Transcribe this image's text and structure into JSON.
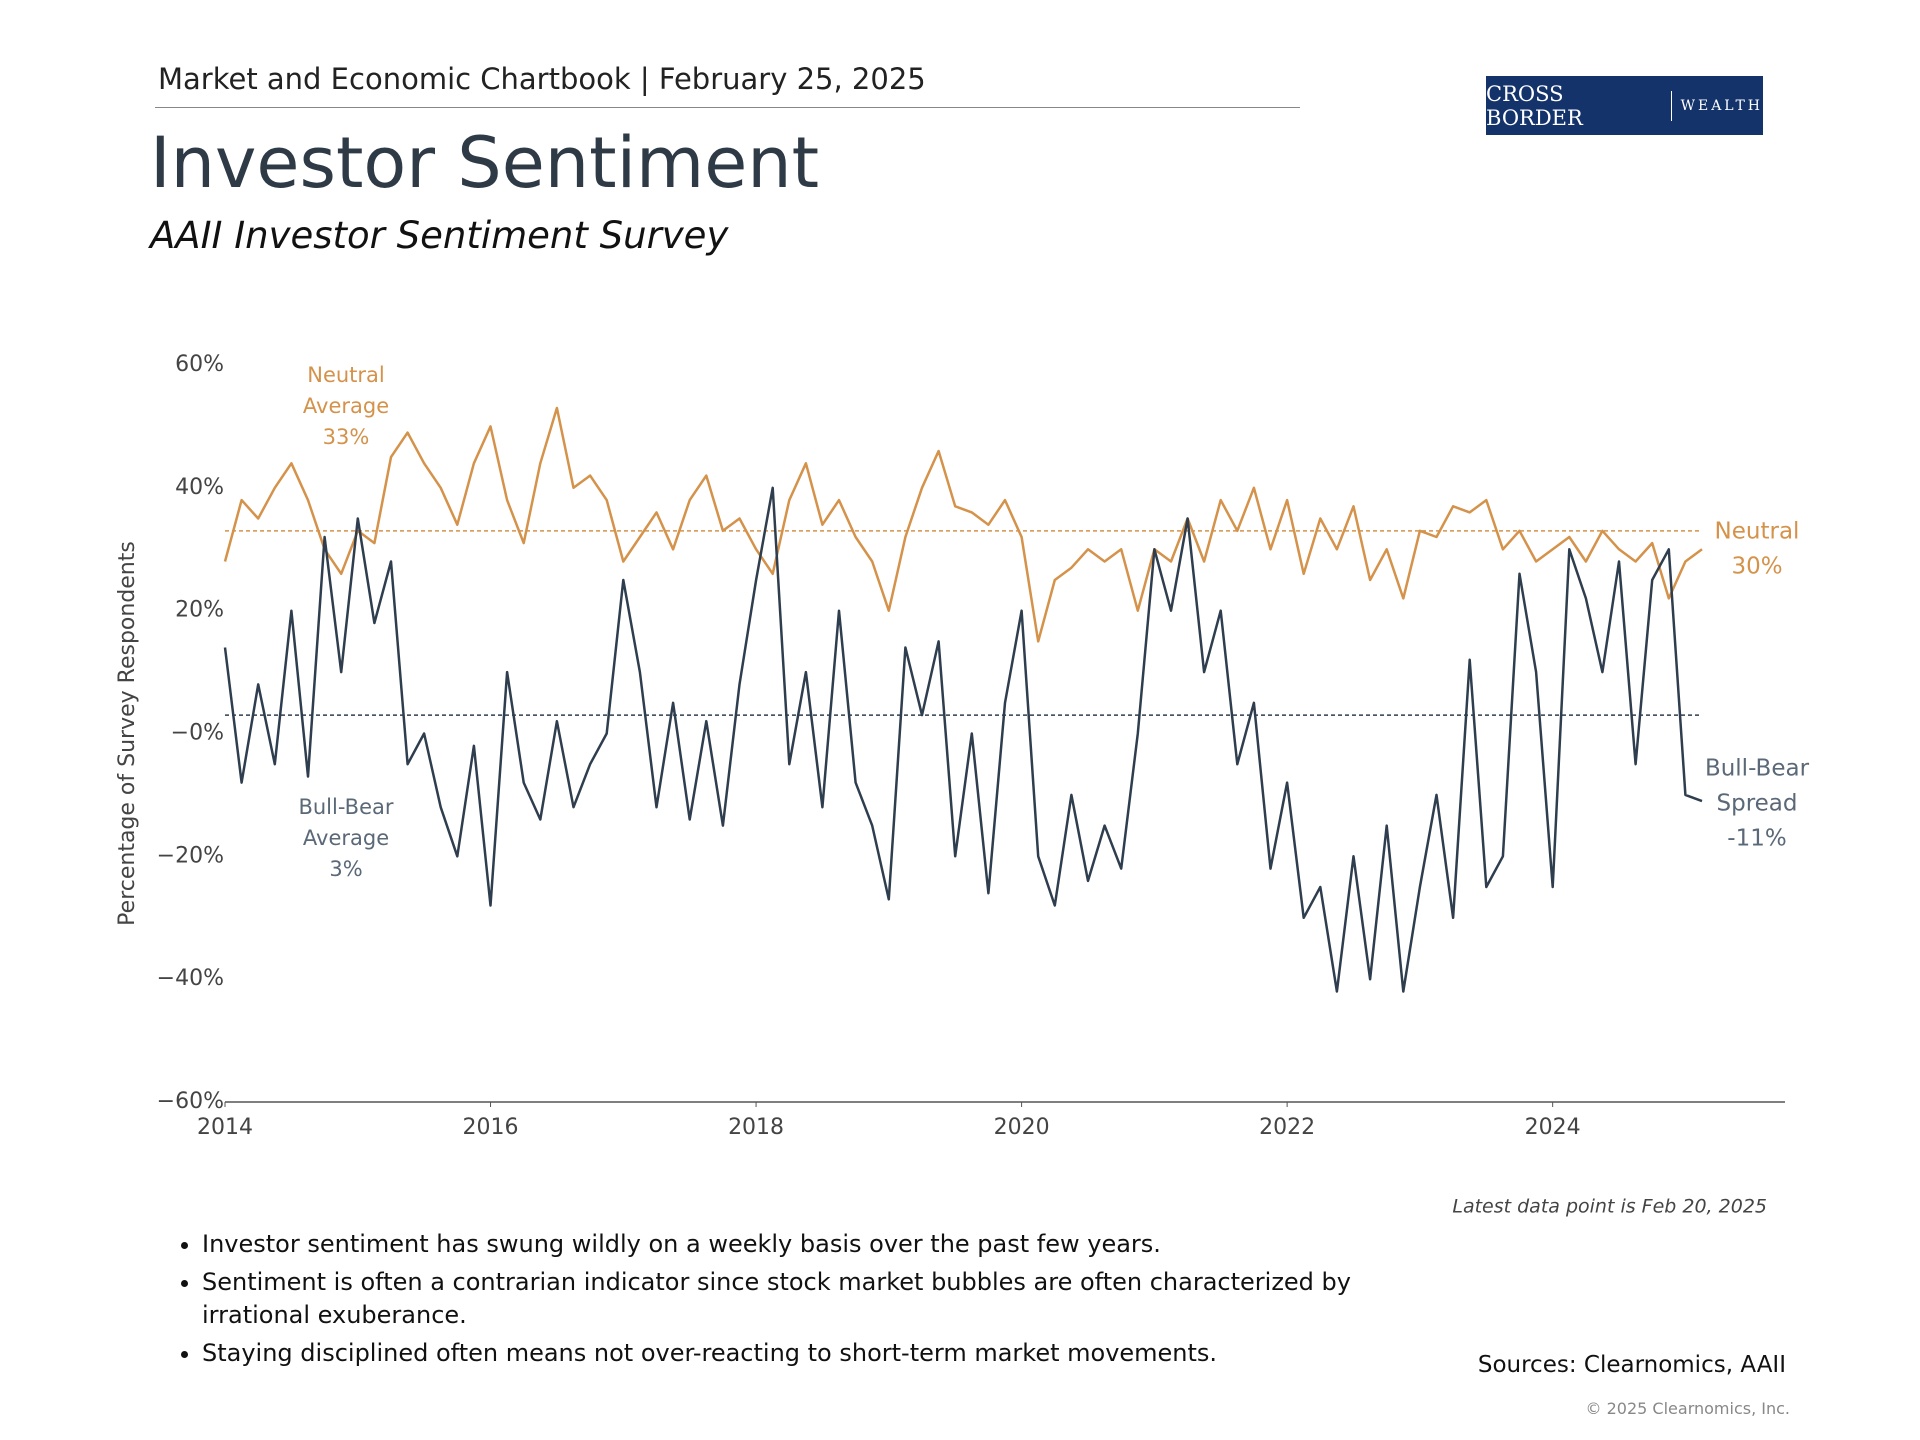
{
  "header": {
    "chartbook": "Market and Economic Chartbook | February 25, 2025",
    "logo_main": "CROSS BORDER",
    "logo_sub": "WEALTH"
  },
  "chart_data": {
    "type": "line",
    "title": "Investor Sentiment",
    "subtitle": "AAII Investor Sentiment Survey",
    "y_axis_label": "Percentage of Survey Respondents",
    "x": [
      2014,
      2014.125,
      2014.25,
      2014.375,
      2014.5,
      2014.625,
      2014.75,
      2014.875,
      2015,
      2015.125,
      2015.25,
      2015.375,
      2015.5,
      2015.625,
      2015.75,
      2015.875,
      2016,
      2016.125,
      2016.25,
      2016.375,
      2016.5,
      2016.625,
      2016.75,
      2016.875,
      2017,
      2017.125,
      2017.25,
      2017.375,
      2017.5,
      2017.625,
      2017.75,
      2017.875,
      2018,
      2018.125,
      2018.25,
      2018.375,
      2018.5,
      2018.625,
      2018.75,
      2018.875,
      2019,
      2019.125,
      2019.25,
      2019.375,
      2019.5,
      2019.625,
      2019.75,
      2019.875,
      2020,
      2020.125,
      2020.25,
      2020.375,
      2020.5,
      2020.625,
      2020.75,
      2020.875,
      2021,
      2021.125,
      2021.25,
      2021.375,
      2021.5,
      2021.625,
      2021.75,
      2021.875,
      2022,
      2022.125,
      2022.25,
      2022.375,
      2022.5,
      2022.625,
      2022.75,
      2022.875,
      2023,
      2023.125,
      2023.25,
      2023.375,
      2023.5,
      2023.625,
      2023.75,
      2023.875,
      2024,
      2024.125,
      2024.25,
      2024.375,
      2024.5,
      2024.625,
      2024.75,
      2024.875,
      2025,
      2025.125
    ],
    "series": [
      {
        "name": "Neutral",
        "color": "#d4924a",
        "values": [
          28,
          38,
          35,
          40,
          44,
          38,
          30,
          26,
          33,
          31,
          45,
          49,
          44,
          40,
          34,
          44,
          50,
          38,
          31,
          44,
          53,
          40,
          42,
          38,
          28,
          32,
          36,
          30,
          38,
          42,
          33,
          35,
          30,
          26,
          38,
          44,
          34,
          38,
          32,
          28,
          20,
          32,
          40,
          46,
          37,
          36,
          34,
          38,
          32,
          15,
          25,
          27,
          30,
          28,
          30,
          20,
          30,
          28,
          35,
          28,
          38,
          33,
          40,
          30,
          38,
          26,
          35,
          30,
          37,
          25,
          30,
          22,
          33,
          32,
          37,
          36,
          38,
          30,
          33,
          28,
          30,
          32,
          28,
          33,
          30,
          28,
          31,
          22,
          28,
          30
        ]
      },
      {
        "name": "Bull-Bear Spread",
        "color": "#2f3e4e",
        "values": [
          14,
          -8,
          8,
          -5,
          20,
          -7,
          32,
          10,
          35,
          18,
          28,
          -5,
          0,
          -12,
          -20,
          -2,
          -28,
          10,
          -8,
          -14,
          2,
          -12,
          -5,
          0,
          25,
          10,
          -12,
          5,
          -14,
          2,
          -15,
          8,
          25,
          40,
          -5,
          10,
          -12,
          20,
          -8,
          -15,
          -27,
          14,
          3,
          15,
          -20,
          0,
          -26,
          5,
          20,
          -20,
          -28,
          -10,
          -24,
          -15,
          -22,
          0,
          30,
          20,
          35,
          10,
          20,
          -5,
          5,
          -22,
          -8,
          -30,
          -25,
          -42,
          -20,
          -40,
          -15,
          -42,
          -25,
          -10,
          -30,
          12,
          -25,
          -20,
          26,
          10,
          -25,
          30,
          22,
          10,
          28,
          -5,
          25,
          30,
          -10,
          -11
        ]
      }
    ],
    "reference_lines": [
      {
        "value": 33,
        "color": "#d4924a"
      },
      {
        "value": 3,
        "color": "#2f3e4e"
      }
    ],
    "annotations": [
      {
        "lines": [
          "Neutral",
          "Average",
          "33%"
        ],
        "color": "#d4924a"
      },
      {
        "lines": [
          "Bull-Bear",
          "Average",
          "3%"
        ],
        "color": "#5a6877"
      },
      {
        "lines": [
          "Neutral",
          "30%"
        ],
        "color": "#d4924a"
      },
      {
        "lines": [
          "Bull-Bear",
          "Spread",
          "-11%"
        ],
        "color": "#5a6877"
      }
    ],
    "xlim": [
      2014,
      2025.75
    ],
    "xticks": [
      2014,
      2016,
      2018,
      2020,
      2022,
      2024
    ],
    "ylim": [
      -60,
      60
    ],
    "yticks": [
      {
        "value": 60,
        "label": "60%"
      },
      {
        "value": 40,
        "label": "40%"
      },
      {
        "value": 20,
        "label": "20%"
      },
      {
        "value": 0,
        "label": "−0%"
      },
      {
        "value": -20,
        "label": "−20%"
      },
      {
        "value": -40,
        "label": "−40%"
      },
      {
        "value": -60,
        "label": "−60%"
      }
    ],
    "note": "Latest data point is Feb 20, 2025"
  },
  "bullets": [
    "Investor sentiment has swung wildly on a weekly basis over the past few years.",
    "Sentiment is often a contrarian indicator since stock market bubbles are often characterized by irrational exuberance.",
    "Staying disciplined often means not over-reacting to short-term market movements."
  ],
  "footer": {
    "sources": "Sources: Clearnomics,  AAII",
    "copyright": "© 2025 Clearnomics, Inc."
  }
}
